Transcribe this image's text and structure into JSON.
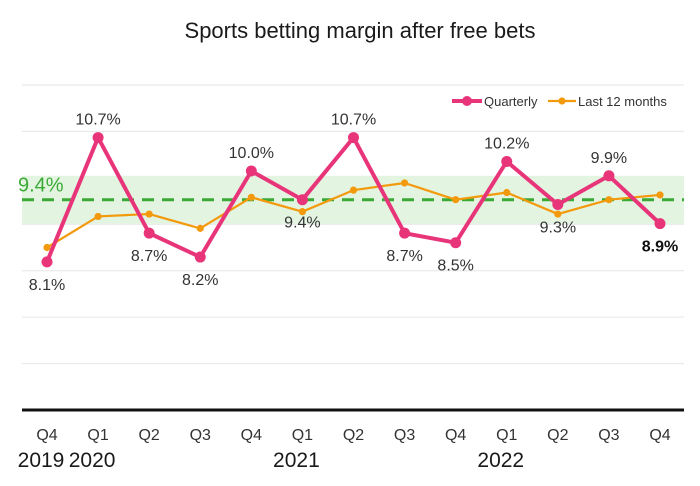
{
  "chart_data": {
    "type": "line",
    "title": "Sports betting margin after free bets",
    "categories": [
      "Q4",
      "Q1",
      "Q2",
      "Q3",
      "Q4",
      "Q1",
      "Q2",
      "Q3",
      "Q4",
      "Q1",
      "Q2",
      "Q3",
      "Q4"
    ],
    "years": [
      {
        "label": "2019",
        "index": 0
      },
      {
        "label": "2020",
        "index": 1
      },
      {
        "label": "2021",
        "index": 5
      },
      {
        "label": "2022",
        "index": 9
      }
    ],
    "series": [
      {
        "name": "Quarterly",
        "color": "#e8357a",
        "values": [
          8.1,
          10.7,
          8.7,
          8.2,
          10.0,
          9.4,
          10.7,
          8.7,
          8.5,
          10.2,
          9.3,
          9.9,
          8.9
        ],
        "labels": [
          "8.1%",
          "10.7%",
          "8.7%",
          "8.2%",
          "10.0%",
          "9.4%",
          "10.7%",
          "8.7%",
          "8.5%",
          "10.2%",
          "9.3%",
          "9.9%",
          "8.9%"
        ]
      },
      {
        "name": "Last 12 months",
        "color": "#f39a0c",
        "values": [
          8.4,
          9.05,
          9.1,
          8.8,
          9.45,
          9.15,
          9.6,
          9.75,
          9.4,
          9.55,
          9.1,
          9.4,
          9.5
        ]
      }
    ],
    "target": {
      "value": 9.4,
      "label": "9.4%",
      "band": [
        8.9,
        9.9
      ],
      "color": "#3aaa35",
      "band_color": "#e3f4e1"
    },
    "ylim": [
      5,
      11.8
    ],
    "grid": true,
    "legend_position": "top-right"
  }
}
